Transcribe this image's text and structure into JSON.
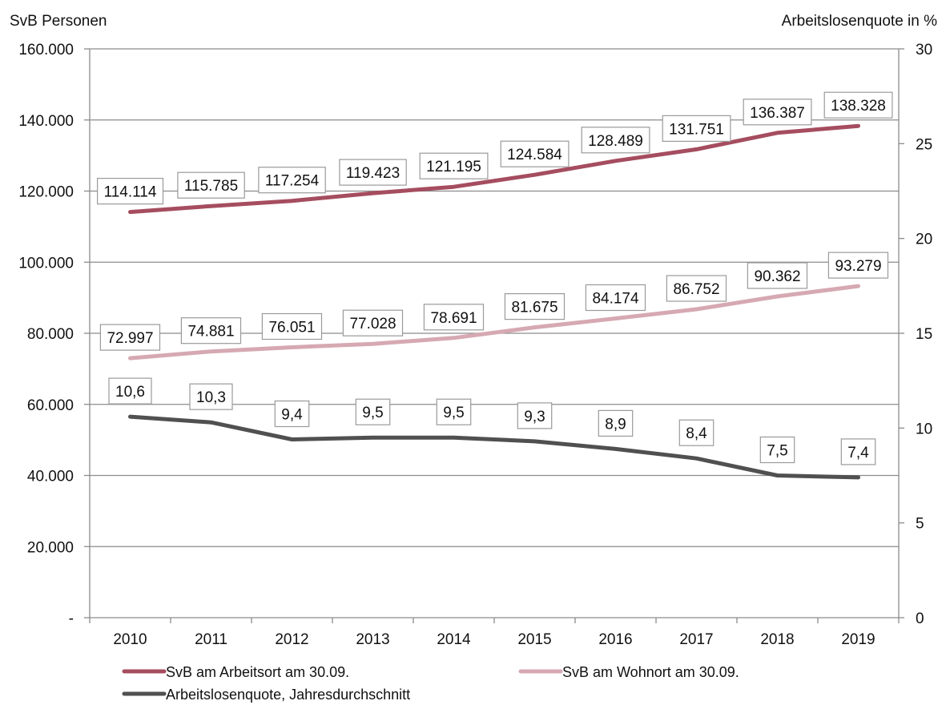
{
  "chart_data": {
    "type": "line",
    "left_axis_title": "SvB Personen",
    "right_axis_title": "Arbeitslosenquote in %",
    "categories": [
      "2010",
      "2011",
      "2012",
      "2013",
      "2014",
      "2015",
      "2016",
      "2017",
      "2018",
      "2019"
    ],
    "left_axis": {
      "ylim": [
        0,
        160000
      ],
      "ticks": [
        0,
        20000,
        40000,
        60000,
        80000,
        100000,
        120000,
        140000,
        160000
      ],
      "tick_labels": [
        "-",
        "20.000",
        "40.000",
        "60.000",
        "80.000",
        "100.000",
        "120.000",
        "140.000",
        "160.000"
      ]
    },
    "right_axis": {
      "ylim": [
        0,
        30
      ],
      "ticks": [
        0,
        5,
        10,
        15,
        20,
        25,
        30
      ],
      "tick_labels": [
        "0",
        "5",
        "10",
        "15",
        "20",
        "25",
        "30"
      ]
    },
    "grid": true,
    "legend_position": "bottom",
    "series": [
      {
        "name": "SvB am Arbeitsort am 30.09.",
        "axis": "left",
        "color": "#a54d5f",
        "values": [
          114114,
          115785,
          117254,
          119423,
          121195,
          124584,
          128489,
          131751,
          136387,
          138328
        ],
        "labels": [
          "114.114",
          "115.785",
          "117.254",
          "119.423",
          "121.195",
          "124.584",
          "128.489",
          "131.751",
          "136.387",
          "138.328"
        ]
      },
      {
        "name": "SvB am Wohnort am 30.09.",
        "axis": "left",
        "color": "#d6a9b2",
        "values": [
          72997,
          74881,
          76051,
          77028,
          78691,
          81675,
          84174,
          86752,
          90362,
          93279
        ],
        "labels": [
          "72.997",
          "74.881",
          "76.051",
          "77.028",
          "78.691",
          "81.675",
          "84.174",
          "86.752",
          "90.362",
          "93.279"
        ]
      },
      {
        "name": "Arbeitslosenquote, Jahresdurchschnitt",
        "axis": "right",
        "color": "#505050",
        "values": [
          10.6,
          10.3,
          9.4,
          9.5,
          9.5,
          9.3,
          8.9,
          8.4,
          7.5,
          7.4
        ],
        "labels": [
          "10,6",
          "10,3",
          "9,4",
          "9,5",
          "9,5",
          "9,3",
          "8,9",
          "8,4",
          "7,5",
          "7,4"
        ]
      }
    ]
  }
}
